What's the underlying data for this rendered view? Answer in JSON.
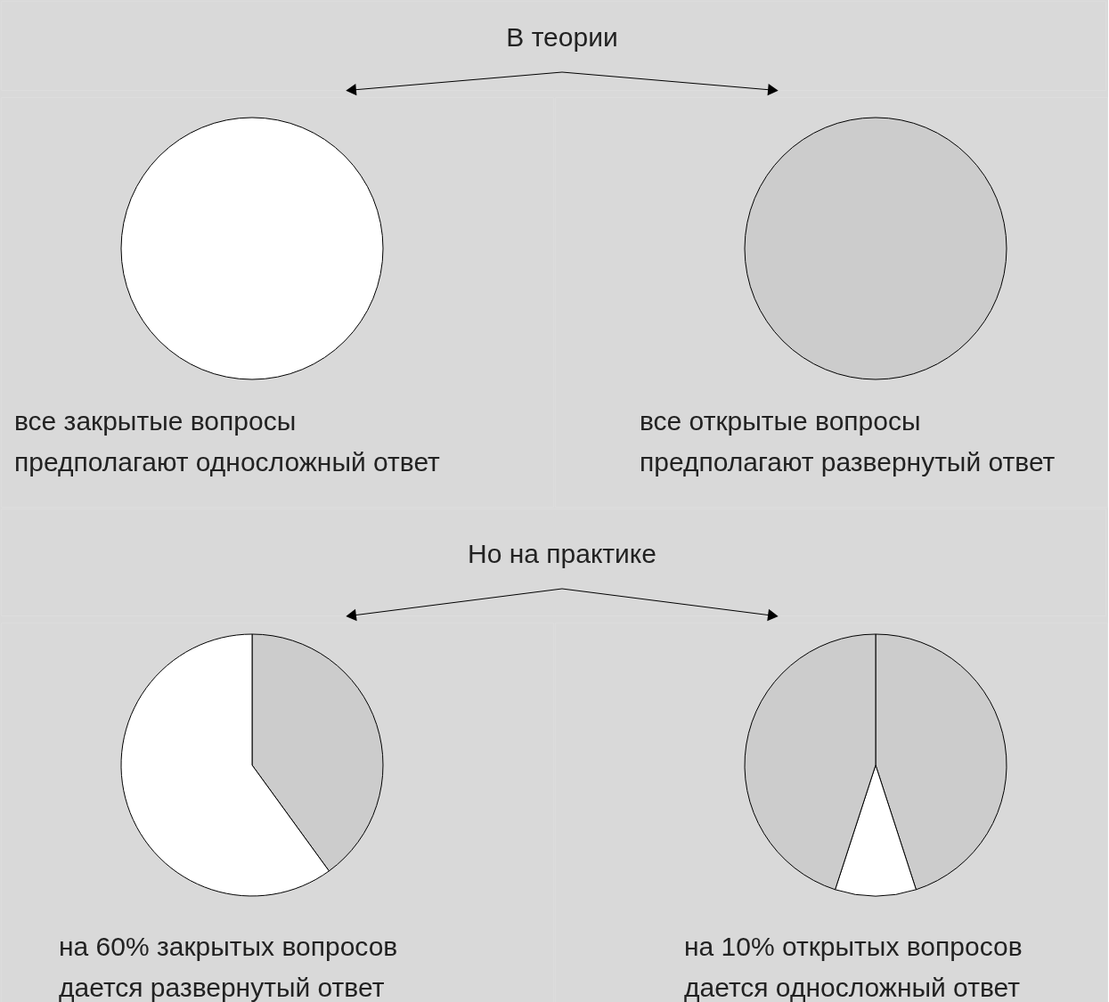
{
  "chart_data": [
    {
      "type": "pie",
      "title": "В теории",
      "categories": [
        null
      ],
      "values": [
        100
      ],
      "colors": [
        "#ffffff"
      ],
      "annotations": [
        "все закрытые вопросы\nпредполагают односложный ответ"
      ]
    },
    {
      "type": "pie",
      "categories": [
        null
      ],
      "values": [
        100
      ],
      "colors": [
        "#cccccc"
      ],
      "annotations": [
        "все открытые вопросы\nпредполагают развернутый ответ"
      ]
    },
    {
      "type": "pie",
      "title": "Но на практике",
      "categories": [
        null,
        null
      ],
      "values": [
        40,
        60
      ],
      "colors": [
        "#cccccc",
        "#ffffff"
      ],
      "annotations": [
        "на 60% закрытых вопросов\nдается развернутый ответ"
      ]
    },
    {
      "type": "pie",
      "categories": [
        null,
        null,
        null
      ],
      "values": [
        45,
        10,
        45
      ],
      "colors": [
        "#cccccc",
        "#ffffff",
        "#cccccc"
      ],
      "annotations": [
        "на 10% открытых вопросов\nдается односложный ответ"
      ]
    }
  ]
}
